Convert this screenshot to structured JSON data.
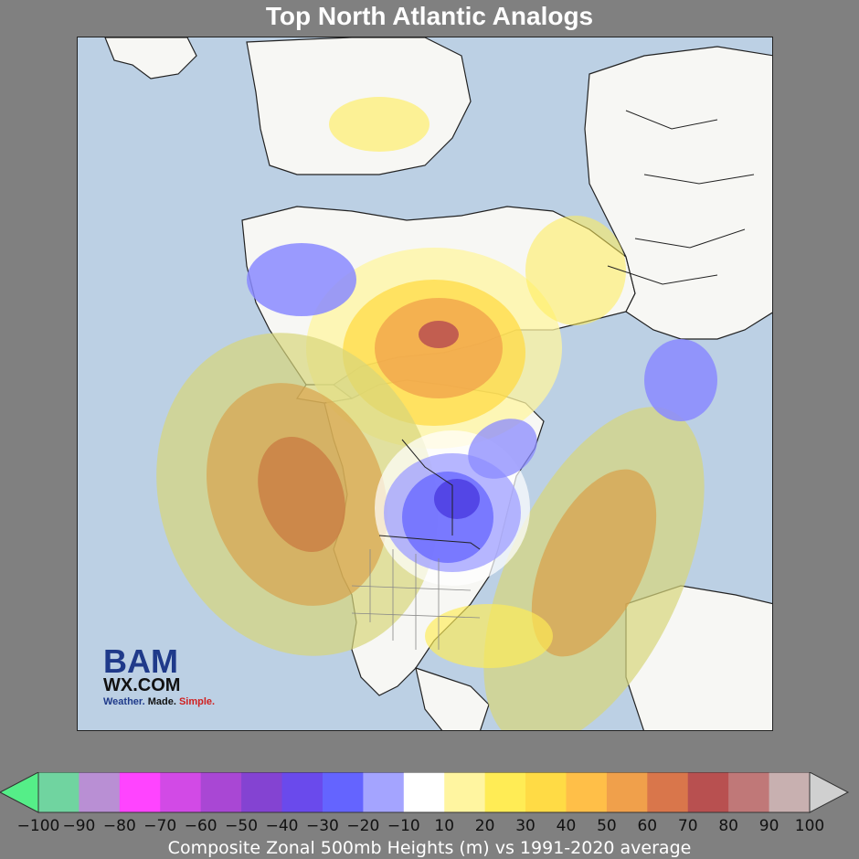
{
  "title": "Top North Atlantic Analogs",
  "logo": {
    "brand": "BAM",
    "site": "WX.COM",
    "tagline_1": "Weather. ",
    "tagline_2": "Made. ",
    "tagline_3": "Simple."
  },
  "colorbar": {
    "ticks": [
      "−100",
      "−90",
      "−80",
      "−70",
      "−60",
      "−50",
      "−40",
      "−30",
      "−20",
      "−10",
      "10",
      "20",
      "30",
      "40",
      "50",
      "60",
      "70",
      "80",
      "90",
      "100"
    ],
    "colors": [
      "#70d4a0",
      "#b98fd4",
      "#ff44ff",
      "#d24ae6",
      "#a947d4",
      "#8443d2",
      "#6a4aec",
      "#6464ff",
      "#a4a4ff",
      "#ffffff",
      "#fff5a0",
      "#ffec55",
      "#ffdb45",
      "#ffbf48",
      "#f0a04b",
      "#d9764b",
      "#b85050",
      "#c07878",
      "#c8b0b0"
    ],
    "low_extend_color": "#55ee88",
    "high_extend_color": "#d0d0d0",
    "caption": "Composite Zonal 500mb Heights (m) vs 1991-2020 average"
  },
  "map": {
    "projection": "north-polar-stereographic",
    "ocean_color": "#bcd0e4",
    "land_color": "#f7f7f4",
    "anomaly_centers": [
      {
        "region": "Arctic / Greenland",
        "sign": "positive",
        "peak_m": 70
      },
      {
        "region": "Gulf of Alaska / NE Pacific",
        "sign": "positive",
        "peak_m": 60
      },
      {
        "region": "Western North Atlantic",
        "sign": "positive",
        "peak_m": 50
      },
      {
        "region": "Hudson Bay / Central Canada",
        "sign": "negative",
        "peak_m": -40
      },
      {
        "region": "East Siberian Sea",
        "sign": "negative",
        "peak_m": -20
      },
      {
        "region": "Central Asia",
        "sign": "negative",
        "peak_m": -20
      },
      {
        "region": "Southeast United States",
        "sign": "positive",
        "peak_m": 20
      }
    ]
  }
}
